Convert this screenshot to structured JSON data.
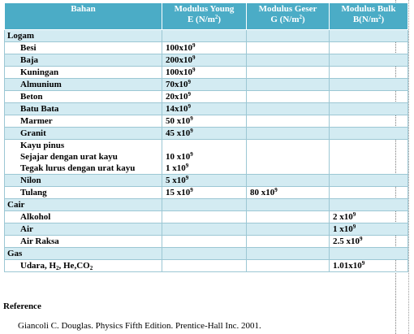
{
  "header": {
    "bahan": "Bahan",
    "young_1": "Modulus Young",
    "young_2": "E (N/m",
    "geser_1": "Modulus Geser",
    "geser_2": "G (N/m",
    "bulk_1": "Modulus Bulk",
    "bulk_2": "B(N/m",
    "exp2": "2",
    "close": ")"
  },
  "groups": [
    {
      "category": "Logam",
      "rows": [
        {
          "name": "Besi",
          "e_base": "100x10",
          "e_exp": "9",
          "g_base": "",
          "g_exp": "",
          "b_base": "",
          "b_exp": ""
        },
        {
          "name": "Baja",
          "e_base": "200x10",
          "e_exp": "9",
          "g_base": "",
          "g_exp": "",
          "b_base": "",
          "b_exp": ""
        },
        {
          "name": "Kuningan",
          "e_base": "100x10",
          "e_exp": "9",
          "g_base": "",
          "g_exp": "",
          "b_base": "",
          "b_exp": ""
        },
        {
          "name": "Almunium",
          "e_base": "70x10",
          "e_exp": "9",
          "g_base": "",
          "g_exp": "",
          "b_base": "",
          "b_exp": ""
        },
        {
          "name": "Beton",
          "e_base": "20x10",
          "e_exp": "9",
          "g_base": "",
          "g_exp": "",
          "b_base": "",
          "b_exp": ""
        },
        {
          "name": "Batu Bata",
          "e_base": "14x10",
          "e_exp": "9",
          "g_base": "",
          "g_exp": "",
          "b_base": "",
          "b_exp": ""
        },
        {
          "name": "Marmer",
          "e_base": "50 x10",
          "e_exp": "9",
          "g_base": "",
          "g_exp": "",
          "b_base": "",
          "b_exp": ""
        },
        {
          "name": "Granit",
          "e_base": "45 x10",
          "e_exp": "9",
          "g_base": "",
          "g_exp": "",
          "b_base": "",
          "b_exp": ""
        }
      ],
      "kayu": {
        "title": "Kayu pinus",
        "line1": "Sejajar dengan urat kayu",
        "line2": "Tegak lurus dengan urat kayu",
        "e1_base": "10 x10",
        "e1_exp": "9",
        "e2_base": "1 x10",
        "e2_exp": "9"
      },
      "rows_after": [
        {
          "name": "Nilon",
          "e_base": "5 x10",
          "e_exp": "9",
          "g_base": "",
          "g_exp": "",
          "b_base": "",
          "b_exp": ""
        },
        {
          "name": "Tulang",
          "e_base": "15 x10",
          "e_exp": "9",
          "g_base": "80 x10",
          "g_exp": "9",
          "b_base": "",
          "b_exp": ""
        }
      ]
    },
    {
      "category": "Cair",
      "rows": [
        {
          "name": "Alkohol",
          "b_base": "2 x10",
          "b_exp": "9"
        },
        {
          "name": "Air",
          "b_base": "1 x10",
          "b_exp": "9"
        },
        {
          "name": "Air Raksa",
          "b_base": "2.5 x10",
          "b_exp": "9"
        }
      ]
    },
    {
      "category": "Gas",
      "rows": [
        {
          "name_a": "Udara, H",
          "name_b": ", He,CO",
          "sub": "2",
          "b_base": "1.01x10",
          "b_exp": "9"
        }
      ]
    }
  ],
  "reference": {
    "title": "Reference",
    "text": "Giancoli C. Douglas. Physics Fifth Edition. Prentice-Hall Inc. 2001."
  }
}
